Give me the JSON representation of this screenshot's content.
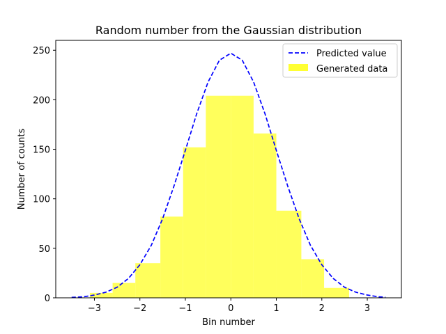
{
  "chart_data": {
    "type": "bar",
    "title": "Random number from the Gaussian distribution",
    "xlabel": "Bin number",
    "ylabel": "Number of counts",
    "xlim": [
      -3.85,
      3.75
    ],
    "ylim": [
      0,
      260
    ],
    "xticks": [
      -3,
      -2,
      -1,
      0,
      1,
      2,
      3
    ],
    "xtick_labels": [
      "−3",
      "−2",
      "−1",
      "0",
      "1",
      "2",
      "3"
    ],
    "yticks": [
      0,
      50,
      100,
      150,
      200,
      250
    ],
    "ytick_labels": [
      "0",
      "50",
      "100",
      "150",
      "200",
      "250"
    ],
    "grid": false,
    "legend_position": "top-right",
    "histogram": {
      "name": "Generated data",
      "color": "#ffff33",
      "bin_edges": [
        -3.1,
        -2.6,
        -2.1,
        -1.55,
        -1.05,
        -0.55,
        0.0,
        0.5,
        1.0,
        1.55,
        2.05,
        2.6
      ],
      "values": [
        5,
        15,
        35,
        82,
        152,
        204,
        204,
        166,
        88,
        39,
        10
      ]
    },
    "curve": {
      "name": "Predicted value",
      "color": "#0000ff",
      "style": "dashed",
      "x": [
        -3.5,
        -3.25,
        -3.0,
        -2.75,
        -2.5,
        -2.25,
        -2.0,
        -1.75,
        -1.5,
        -1.25,
        -1.0,
        -0.75,
        -0.5,
        -0.25,
        0.0,
        0.25,
        0.5,
        0.75,
        1.0,
        1.25,
        1.5,
        1.75,
        2.0,
        2.25,
        2.5,
        2.75,
        3.0,
        3.25,
        3.4
      ],
      "y": [
        0.5,
        1.0,
        2.8,
        5.6,
        10.7,
        19.6,
        33.4,
        53.0,
        80.0,
        113.0,
        149.0,
        186.0,
        218.0,
        240.0,
        247.0,
        240.0,
        218.0,
        186.0,
        149.0,
        113.0,
        80.0,
        53.0,
        33.4,
        19.6,
        10.7,
        5.6,
        2.8,
        1.0,
        0.6
      ]
    },
    "legend": [
      {
        "label": "Predicted value",
        "kind": "line"
      },
      {
        "label": "Generated data",
        "kind": "patch"
      }
    ]
  }
}
